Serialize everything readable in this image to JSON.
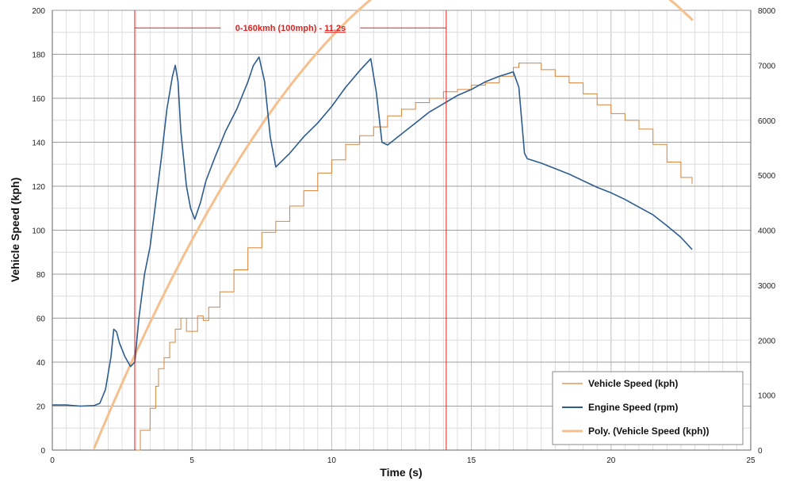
{
  "chart_data": {
    "type": "line",
    "xlabel": "Time (s)",
    "ylabel": "Vehicle Speed (kph)",
    "xlim": [
      0,
      25
    ],
    "ylim": [
      0,
      200
    ],
    "y2lim": [
      0,
      8000
    ],
    "xticks": [
      "0",
      "5",
      "10",
      "15",
      "20",
      "25"
    ],
    "yticks": [
      "0",
      "20",
      "40",
      "60",
      "80",
      "100",
      "120",
      "140",
      "160",
      "180",
      "200"
    ],
    "y2ticks": [
      "0",
      "1000",
      "2000",
      "3000",
      "4000",
      "5000",
      "6000",
      "7000",
      "8000"
    ],
    "grid": true,
    "legend_position": "bottom-right",
    "annotation": {
      "text_prefix": "0-160kmh (100mph) - ",
      "text_value": "11.2s",
      "start_x": 2.95,
      "end_x": 14.1,
      "y": 192
    },
    "series": [
      {
        "name": "Vehicle Speed (kph)",
        "axis": "left",
        "color": "#d9843a",
        "x": [
          3.0,
          3.15,
          3.3,
          3.5,
          3.7,
          3.8,
          4.0,
          4.2,
          4.4,
          4.6,
          4.8,
          5.0,
          5.2,
          5.4,
          5.6,
          6.0,
          6.5,
          7.0,
          7.5,
          8.0,
          8.5,
          9.0,
          9.5,
          10.0,
          10.5,
          11.0,
          11.5,
          12.0,
          12.5,
          13.0,
          13.5,
          14.0,
          14.5,
          15.0,
          15.5,
          16.0,
          16.5,
          16.7,
          17.0,
          17.5,
          18.0,
          18.5,
          19.0,
          19.5,
          20.0,
          20.5,
          21.0,
          21.5,
          22.0,
          22.5,
          22.9
        ],
        "y": [
          0,
          9,
          9,
          19,
          29,
          37,
          42,
          49,
          55,
          60,
          54,
          54,
          61,
          59,
          65,
          72,
          82,
          92,
          99,
          104,
          111,
          118,
          126,
          132,
          139,
          143,
          147,
          152,
          155,
          158,
          160,
          163,
          164,
          166,
          167,
          170,
          174,
          176,
          176,
          173,
          170,
          167,
          162,
          157,
          153,
          150,
          146,
          139,
          131,
          124,
          121
        ]
      },
      {
        "name": "Engine Speed (rpm)",
        "axis": "right",
        "color": "#2c5c90",
        "x": [
          0.0,
          0.5,
          1.0,
          1.5,
          1.7,
          1.9,
          2.1,
          2.2,
          2.3,
          2.4,
          2.6,
          2.8,
          2.95,
          3.1,
          3.3,
          3.5,
          3.7,
          3.9,
          4.1,
          4.3,
          4.4,
          4.5,
          4.6,
          4.8,
          4.95,
          5.1,
          5.3,
          5.5,
          5.8,
          6.2,
          6.6,
          7.0,
          7.2,
          7.4,
          7.6,
          7.8,
          8.0,
          8.5,
          9.0,
          9.5,
          10.0,
          10.5,
          11.0,
          11.4,
          11.6,
          11.8,
          12.0,
          12.5,
          13.0,
          13.5,
          14.0,
          14.5,
          15.0,
          15.5,
          16.0,
          16.5,
          16.7,
          16.9,
          17.0,
          17.5,
          18.0,
          18.5,
          19.0,
          19.5,
          20.0,
          20.5,
          21.0,
          21.5,
          22.0,
          22.5,
          22.9
        ],
        "y": [
          820,
          820,
          800,
          810,
          850,
          1100,
          1700,
          2200,
          2150,
          1950,
          1700,
          1520,
          1600,
          2400,
          3200,
          3700,
          4500,
          5300,
          6200,
          6800,
          7000,
          6700,
          5800,
          4800,
          4400,
          4200,
          4500,
          4900,
          5300,
          5800,
          6200,
          6700,
          7000,
          7150,
          6700,
          5700,
          5150,
          5400,
          5700,
          5950,
          6250,
          6600,
          6900,
          7120,
          6500,
          5600,
          5550,
          5750,
          5950,
          6150,
          6300,
          6450,
          6560,
          6700,
          6800,
          6880,
          6600,
          5400,
          5300,
          5220,
          5120,
          5020,
          4900,
          4780,
          4680,
          4560,
          4420,
          4280,
          4080,
          3870,
          3650
        ]
      },
      {
        "name": "Poly. (Vehicle Speed (kph))",
        "axis": "left",
        "color": "#f6c08e",
        "fit": {
          "a": -1.0,
          "b": 33.5,
          "c": -47,
          "from": 1.5,
          "to": 22.9
        }
      }
    ]
  }
}
